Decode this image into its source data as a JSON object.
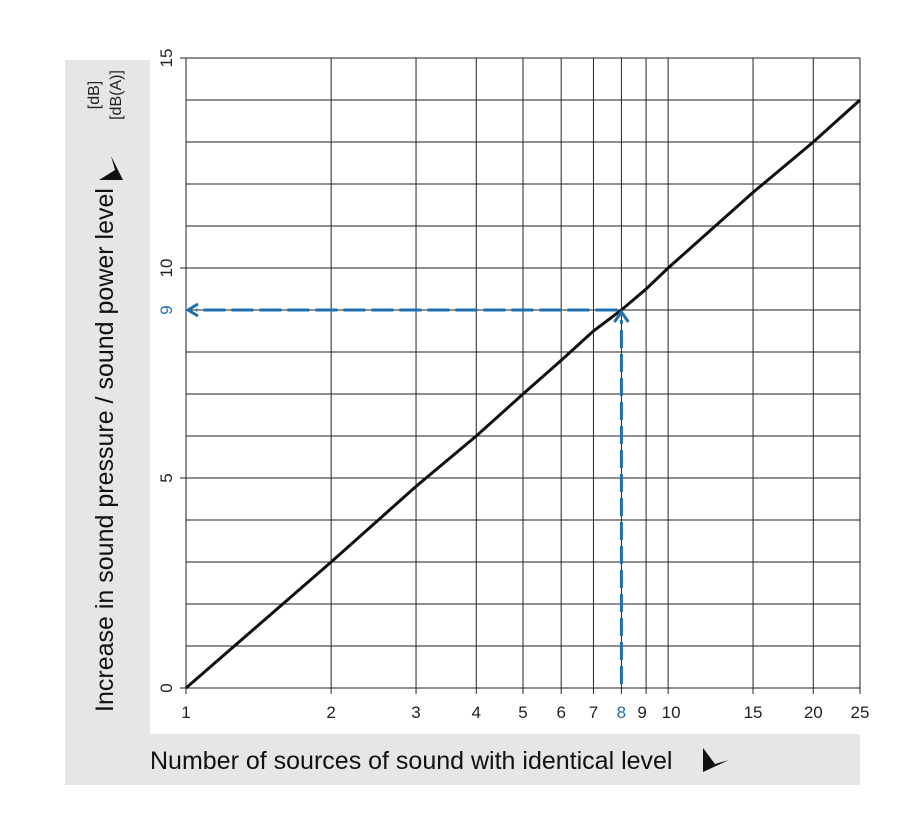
{
  "chart_data": {
    "type": "line",
    "xscale": "log",
    "xlim": [
      1,
      25
    ],
    "ylim": [
      0,
      15
    ],
    "grid": true,
    "xlabel": "Number of sources of sound with identical level",
    "ylabel": "Increase in sound pressure / sound power level",
    "yunits": [
      "[dB]",
      "[dB(A)]"
    ],
    "x_ticks": [
      1,
      2,
      3,
      4,
      5,
      6,
      7,
      8,
      9,
      10,
      15,
      20,
      25
    ],
    "y_ticks": [
      0,
      5,
      10,
      15
    ],
    "y_gridlines": [
      0,
      1,
      2,
      3,
      4,
      5,
      6,
      7,
      8,
      9,
      10,
      11,
      12,
      13,
      14,
      15
    ],
    "series": [
      {
        "x": [
          1,
          2,
          3,
          4,
          5,
          6,
          7,
          8,
          9,
          10,
          15,
          20,
          25
        ],
        "y": [
          0,
          3,
          4.8,
          6,
          7,
          7.8,
          8.5,
          9,
          9.5,
          10,
          11.8,
          13,
          14
        ],
        "color": "#111111"
      }
    ],
    "example": {
      "x": 8,
      "y": 9,
      "x_label": "8",
      "y_label": "9",
      "color": "#1f6fb2"
    },
    "colors": {
      "label_panel": "#e6e6e6",
      "grid": "#222222"
    }
  }
}
